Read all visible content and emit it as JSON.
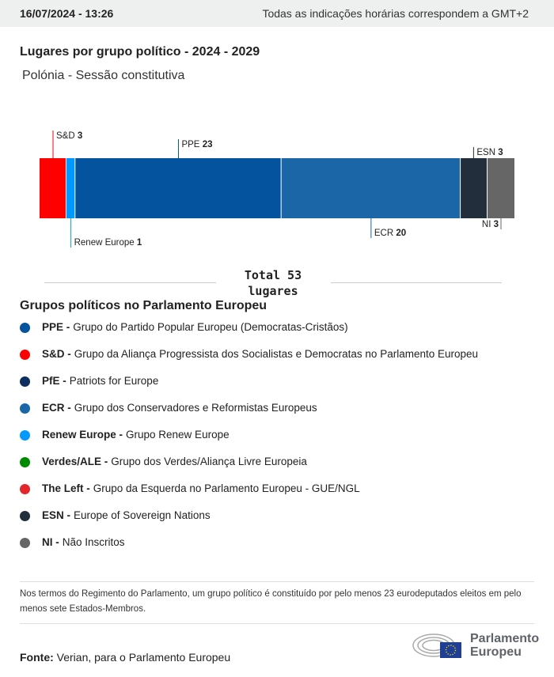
{
  "header": {
    "datetime": "16/07/2024 - 13:26",
    "timezone_note": "Todas as indicações horárias correspondem a GMT+2"
  },
  "title": "Lugares por grupo político - 2024 - 2029",
  "subtitle": "Polónia - Sessão constitutiva",
  "chart_data": {
    "type": "bar",
    "orientation": "horizontal-stacked",
    "series": [
      {
        "name": "S&D",
        "value": 3,
        "color": "#ff0000",
        "label_pos": "top"
      },
      {
        "name": "Renew Europe",
        "value": 1,
        "color": "#0099ff",
        "label_pos": "bottom"
      },
      {
        "name": "PPE",
        "value": 23,
        "color": "#03539e",
        "label_pos": "top"
      },
      {
        "name": "ECR",
        "value": 20,
        "color": "#1a66a6",
        "label_pos": "bottom"
      },
      {
        "name": "ESN",
        "value": 3,
        "color": "#222e3c",
        "label_pos": "top"
      },
      {
        "name": "NI",
        "value": 3,
        "color": "#666666",
        "label_pos": "bottom"
      }
    ],
    "total_line1": "Total 53",
    "total_line2": "lugares"
  },
  "legend": {
    "heading": "Grupos políticos no Parlamento Europeu",
    "items": [
      {
        "abbr": "PPE -",
        "name": "Grupo do Partido Popular Europeu (Democratas-Cristãos)",
        "color": "#03539e"
      },
      {
        "abbr": "S&D -",
        "name": "Grupo da Aliança Progressista dos Socialistas e Democratas no Parlamento Europeu",
        "color": "#ff0000"
      },
      {
        "abbr": "PfE -",
        "name": "Patriots for Europe",
        "color": "#0c2f5e"
      },
      {
        "abbr": "ECR -",
        "name": "Grupo dos Conservadores e Reformistas Europeus",
        "color": "#1a66a6"
      },
      {
        "abbr": "Renew Europe -",
        "name": "Grupo Renew Europe",
        "color": "#0099ff"
      },
      {
        "abbr": "Verdes/ALE -",
        "name": "Grupo dos Verdes/Aliança Livre Europeia",
        "color": "#008a00"
      },
      {
        "abbr": "The Left -",
        "name": "Grupo da Esquerda no Parlamento Europeu - GUE/NGL",
        "color": "#e3262b"
      },
      {
        "abbr": "ESN -",
        "name": "Europe of Sovereign Nations",
        "color": "#222e3c"
      },
      {
        "abbr": "NI -",
        "name": "Não Inscritos",
        "color": "#666666"
      }
    ]
  },
  "note": "Nos termos do Regimento do Parlamento, um grupo político é constituído por pelo menos 23 eurodeputados eleitos em pelo menos sete Estados-Membros.",
  "source": {
    "label": "Fonte:",
    "text": "Verian, para o Parlamento Europeu"
  },
  "logo": {
    "line1": "Parlamento",
    "line2": "Europeu"
  }
}
